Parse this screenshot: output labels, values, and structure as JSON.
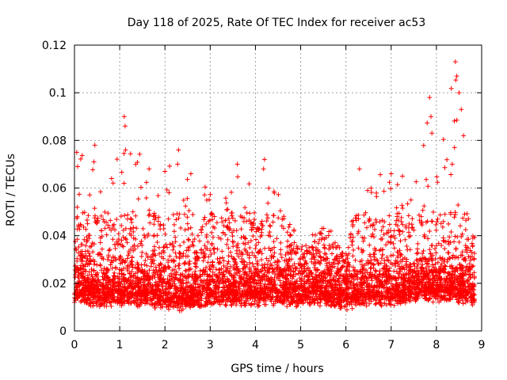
{
  "chart_data": {
    "type": "scatter",
    "title": "Day 118 of 2025, Rate Of TEC Index for receiver ac53",
    "xlabel": "GPS time / hours",
    "ylabel": "ROTI / TECUs",
    "xlim": [
      0,
      9
    ],
    "ylim": [
      0,
      0.12
    ],
    "xticks": [
      "0",
      "1",
      "2",
      "3",
      "4",
      "5",
      "6",
      "7",
      "8",
      "9"
    ],
    "yticks": [
      "0",
      "0.02",
      "0.04",
      "0.06",
      "0.08",
      "0.1",
      "0.12"
    ],
    "grid": true,
    "marker": "+",
    "color": "#ff0000",
    "series": [
      {
        "name": "ROTI",
        "generated_note": "dense cloud approx. 9000 points; summary envelope below",
        "envelope": [
          {
            "x": 0.0,
            "base": 0.01,
            "top": 0.03
          },
          {
            "x": 0.1,
            "base": 0.012,
            "top": 0.075
          },
          {
            "x": 0.4,
            "base": 0.01,
            "top": 0.078
          },
          {
            "x": 0.8,
            "base": 0.01,
            "top": 0.064
          },
          {
            "x": 1.1,
            "base": 0.01,
            "top": 0.09
          },
          {
            "x": 1.6,
            "base": 0.01,
            "top": 0.068
          },
          {
            "x": 2.0,
            "base": 0.008,
            "top": 0.067
          },
          {
            "x": 2.3,
            "base": 0.008,
            "top": 0.076
          },
          {
            "x": 3.0,
            "base": 0.01,
            "top": 0.06
          },
          {
            "x": 3.6,
            "base": 0.01,
            "top": 0.07
          },
          {
            "x": 4.2,
            "base": 0.01,
            "top": 0.072
          },
          {
            "x": 5.0,
            "base": 0.01,
            "top": 0.036
          },
          {
            "x": 5.6,
            "base": 0.01,
            "top": 0.046
          },
          {
            "x": 6.0,
            "base": 0.008,
            "top": 0.03
          },
          {
            "x": 6.3,
            "base": 0.01,
            "top": 0.068
          },
          {
            "x": 7.0,
            "base": 0.01,
            "top": 0.066
          },
          {
            "x": 7.5,
            "base": 0.012,
            "top": 0.058
          },
          {
            "x": 7.9,
            "base": 0.012,
            "top": 0.098
          },
          {
            "x": 8.4,
            "base": 0.012,
            "top": 0.113
          },
          {
            "x": 8.8,
            "base": 0.01,
            "top": 0.04
          }
        ],
        "peaks": [
          {
            "x": 0.05,
            "y": 0.075
          },
          {
            "x": 0.07,
            "y": 0.069
          },
          {
            "x": 0.45,
            "y": 0.078
          },
          {
            "x": 0.43,
            "y": 0.071
          },
          {
            "x": 0.82,
            "y": 0.064
          },
          {
            "x": 1.1,
            "y": 0.09
          },
          {
            "x": 1.12,
            "y": 0.086
          },
          {
            "x": 1.13,
            "y": 0.076
          },
          {
            "x": 1.65,
            "y": 0.068
          },
          {
            "x": 2.0,
            "y": 0.067
          },
          {
            "x": 2.3,
            "y": 0.076
          },
          {
            "x": 2.28,
            "y": 0.07
          },
          {
            "x": 3.6,
            "y": 0.07
          },
          {
            "x": 4.2,
            "y": 0.072
          },
          {
            "x": 4.18,
            "y": 0.068
          },
          {
            "x": 6.3,
            "y": 0.068
          },
          {
            "x": 7.0,
            "y": 0.066
          },
          {
            "x": 7.25,
            "y": 0.065
          },
          {
            "x": 7.85,
            "y": 0.098
          },
          {
            "x": 7.88,
            "y": 0.09
          },
          {
            "x": 7.9,
            "y": 0.083
          },
          {
            "x": 8.42,
            "y": 0.113
          },
          {
            "x": 8.45,
            "y": 0.107
          },
          {
            "x": 8.5,
            "y": 0.1
          },
          {
            "x": 8.55,
            "y": 0.093
          },
          {
            "x": 8.6,
            "y": 0.082
          },
          {
            "x": 8.4,
            "y": 0.077
          },
          {
            "x": 8.35,
            "y": 0.07
          }
        ]
      }
    ]
  }
}
